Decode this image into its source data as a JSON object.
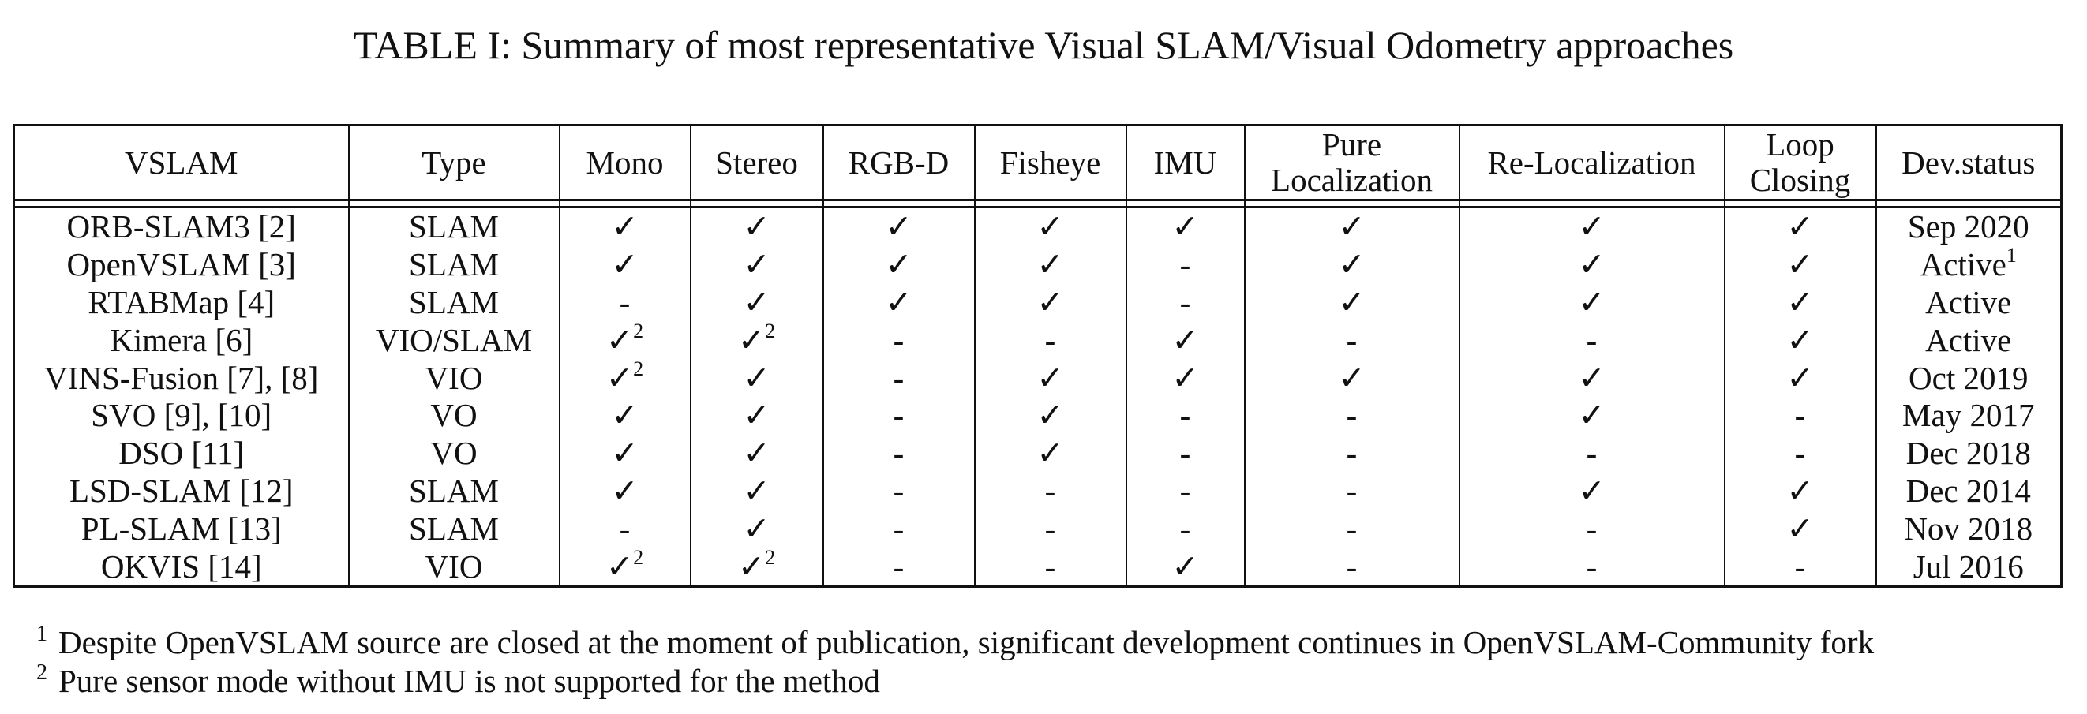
{
  "caption": "TABLE I: Summary of most representative Visual SLAM/Visual Odometry approaches",
  "headers": {
    "vslam": "VSLAM",
    "type": "Type",
    "mono": "Mono",
    "stereo": "Stereo",
    "rgbd": "RGB-D",
    "fisheye": "Fisheye",
    "imu": "IMU",
    "pure_loc_1": "Pure",
    "pure_loc_2": "Localization",
    "reloc": "Re-Localization",
    "loop_1": "Loop",
    "loop_2": "Closing",
    "dev": "Dev.status"
  },
  "rows": [
    {
      "name": "ORB-SLAM3 [2]",
      "type": "SLAM",
      "mono": "✓",
      "mono_sup": "",
      "stereo": "✓",
      "stereo_sup": "",
      "rgbd": "✓",
      "fisheye": "✓",
      "imu": "✓",
      "pure": "✓",
      "reloc": "✓",
      "loop": "✓",
      "dev": "Sep 2020",
      "dev_sup": ""
    },
    {
      "name": "OpenVSLAM [3]",
      "type": "SLAM",
      "mono": "✓",
      "mono_sup": "",
      "stereo": "✓",
      "stereo_sup": "",
      "rgbd": "✓",
      "fisheye": "✓",
      "imu": "-",
      "pure": "✓",
      "reloc": "✓",
      "loop": "✓",
      "dev": "Active",
      "dev_sup": "1"
    },
    {
      "name": "RTABMap [4]",
      "type": "SLAM",
      "mono": "-",
      "mono_sup": "",
      "stereo": "✓",
      "stereo_sup": "",
      "rgbd": "✓",
      "fisheye": "✓",
      "imu": "-",
      "pure": "✓",
      "reloc": "✓",
      "loop": "✓",
      "dev": "Active",
      "dev_sup": ""
    },
    {
      "name": "Kimera [6]",
      "type": "VIO/SLAM",
      "mono": "✓",
      "mono_sup": "2",
      "stereo": "✓",
      "stereo_sup": "2",
      "rgbd": "-",
      "fisheye": "-",
      "imu": "✓",
      "pure": "-",
      "reloc": "-",
      "loop": "✓",
      "dev": "Active",
      "dev_sup": ""
    },
    {
      "name": "VINS-Fusion [7], [8]",
      "type": "VIO",
      "mono": "✓",
      "mono_sup": "2",
      "stereo": "✓",
      "stereo_sup": "",
      "rgbd": "-",
      "fisheye": "✓",
      "imu": "✓",
      "pure": "✓",
      "reloc": "✓",
      "loop": "✓",
      "dev": "Oct 2019",
      "dev_sup": ""
    },
    {
      "name": "SVO [9], [10]",
      "type": "VO",
      "mono": "✓",
      "mono_sup": "",
      "stereo": "✓",
      "stereo_sup": "",
      "rgbd": "-",
      "fisheye": "✓",
      "imu": "-",
      "pure": "-",
      "reloc": "✓",
      "loop": "-",
      "dev": "May 2017",
      "dev_sup": ""
    },
    {
      "name": "DSO [11]",
      "type": "VO",
      "mono": "✓",
      "mono_sup": "",
      "stereo": "✓",
      "stereo_sup": "",
      "rgbd": "-",
      "fisheye": "✓",
      "imu": "-",
      "pure": "-",
      "reloc": "-",
      "loop": "-",
      "dev": "Dec 2018",
      "dev_sup": ""
    },
    {
      "name": "LSD-SLAM [12]",
      "type": "SLAM",
      "mono": "✓",
      "mono_sup": "",
      "stereo": "✓",
      "stereo_sup": "",
      "rgbd": "-",
      "fisheye": "-",
      "imu": "-",
      "pure": "-",
      "reloc": "✓",
      "loop": "✓",
      "dev": "Dec 2014",
      "dev_sup": ""
    },
    {
      "name": "PL-SLAM [13]",
      "type": "SLAM",
      "mono": "-",
      "mono_sup": "",
      "stereo": "✓",
      "stereo_sup": "",
      "rgbd": "-",
      "fisheye": "-",
      "imu": "-",
      "pure": "-",
      "reloc": "-",
      "loop": "✓",
      "dev": "Nov 2018",
      "dev_sup": ""
    },
    {
      "name": "OKVIS [14]",
      "type": "VIO",
      "mono": "✓",
      "mono_sup": "2",
      "stereo": "✓",
      "stereo_sup": "2",
      "rgbd": "-",
      "fisheye": "-",
      "imu": "✓",
      "pure": "-",
      "reloc": "-",
      "loop": "-",
      "dev": "Jul 2016",
      "dev_sup": ""
    }
  ],
  "footnotes": [
    {
      "mark": "1",
      "text": "Despite OpenVSLAM source are closed at the moment of publication, significant development continues in OpenVSLAM-Community fork"
    },
    {
      "mark": "2",
      "text": "Pure sensor mode without IMU is not supported for the method"
    }
  ]
}
